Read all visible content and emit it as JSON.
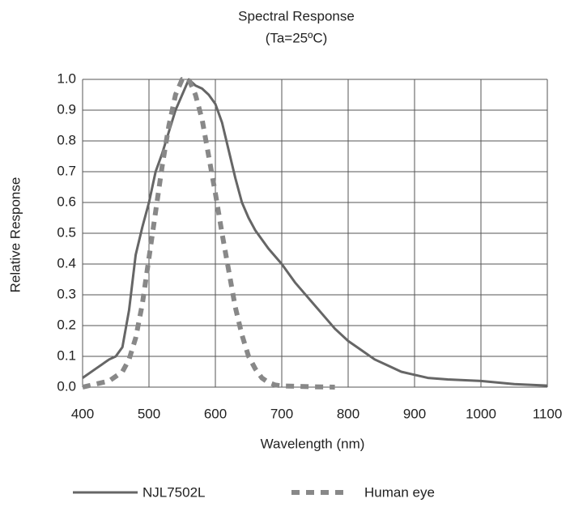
{
  "chart_data": {
    "type": "line",
    "title": "Spectral Response",
    "subtitle": "(Ta=25ºC)",
    "x_label": "Wavelength (nm)",
    "y_label": "Relative Response",
    "xlim": [
      400,
      1100
    ],
    "xticks": [
      400,
      500,
      600,
      700,
      800,
      900,
      1000,
      1100
    ],
    "ylim": [
      0,
      1
    ],
    "yticks": [
      {
        "value": 0,
        "label": "0.0"
      },
      {
        "value": 0.1,
        "label": "0.1"
      },
      {
        "value": 0.2,
        "label": "0.2"
      },
      {
        "value": 0.3,
        "label": "0.3"
      },
      {
        "value": 0.4,
        "label": "0.4"
      },
      {
        "value": 0.5,
        "label": "0.5"
      },
      {
        "value": 0.6,
        "label": "0.6"
      },
      {
        "value": 0.7,
        "label": "0.7"
      },
      {
        "value": 0.8,
        "label": "0.8"
      },
      {
        "value": 0.9,
        "label": "0.9"
      },
      {
        "value": 1,
        "label": "1.0"
      }
    ],
    "grid": true,
    "legend": "bottom",
    "series": [
      {
        "name": "NJL7502L",
        "color": "#666666",
        "style": "solid",
        "x": [
          400,
          420,
          440,
          450,
          460,
          470,
          480,
          490,
          500,
          510,
          520,
          530,
          540,
          550,
          560,
          570,
          580,
          590,
          600,
          610,
          620,
          630,
          640,
          650,
          660,
          670,
          680,
          700,
          720,
          740,
          760,
          780,
          800,
          820,
          840,
          860,
          880,
          900,
          920,
          950,
          1000,
          1050,
          1100
        ],
        "values": [
          0.03,
          0.06,
          0.09,
          0.1,
          0.13,
          0.25,
          0.43,
          0.52,
          0.6,
          0.7,
          0.76,
          0.83,
          0.9,
          0.95,
          1.0,
          0.98,
          0.97,
          0.95,
          0.92,
          0.86,
          0.77,
          0.68,
          0.6,
          0.55,
          0.51,
          0.48,
          0.45,
          0.4,
          0.34,
          0.29,
          0.24,
          0.19,
          0.15,
          0.12,
          0.09,
          0.07,
          0.05,
          0.04,
          0.03,
          0.025,
          0.02,
          0.01,
          0.005
        ]
      },
      {
        "name": "Human eye",
        "color": "#888888",
        "style": "dashed",
        "x": [
          400,
          420,
          440,
          460,
          470,
          480,
          490,
          500,
          510,
          520,
          530,
          540,
          550,
          560,
          570,
          580,
          590,
          600,
          610,
          620,
          630,
          640,
          650,
          660,
          670,
          680,
          690,
          700,
          750,
          780
        ],
        "values": [
          0,
          0.01,
          0.02,
          0.05,
          0.09,
          0.16,
          0.27,
          0.42,
          0.57,
          0.72,
          0.85,
          0.95,
          1.0,
          1.0,
          0.95,
          0.87,
          0.75,
          0.63,
          0.5,
          0.38,
          0.26,
          0.17,
          0.1,
          0.06,
          0.03,
          0.015,
          0.007,
          0.004,
          0.001,
          0
        ]
      }
    ]
  }
}
